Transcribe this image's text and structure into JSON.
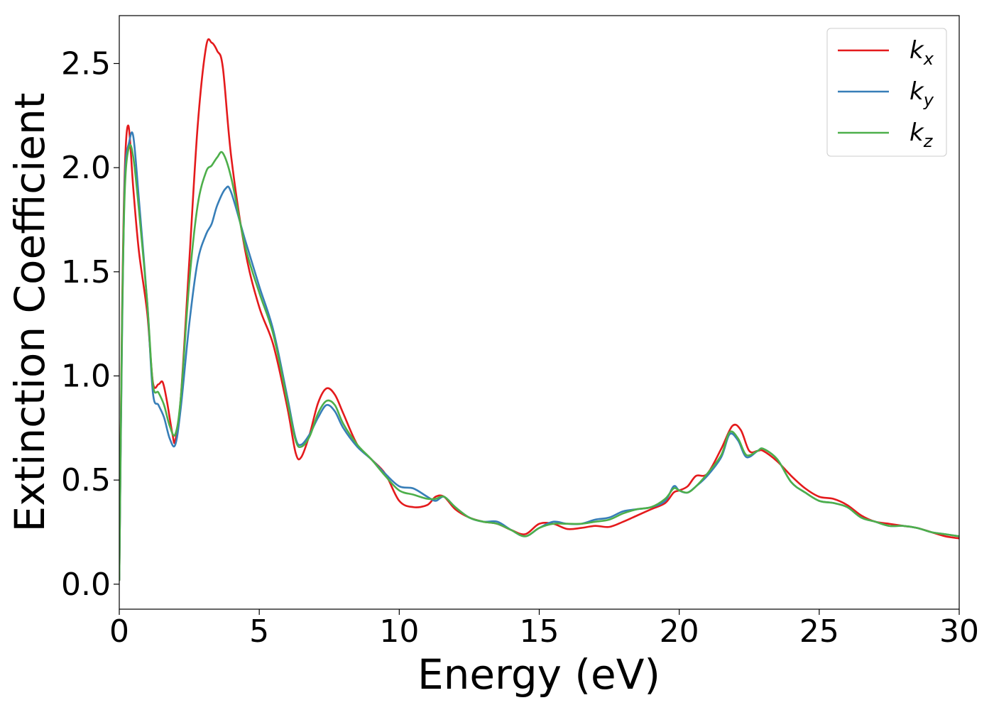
{
  "chart_data": {
    "type": "line",
    "title": "",
    "xlabel": "Energy (eV)",
    "ylabel": "Extinction Coefficient",
    "xlim": [
      0,
      30
    ],
    "ylim": [
      -0.12,
      2.73
    ],
    "xticks": [
      0,
      5,
      10,
      15,
      20,
      25,
      30
    ],
    "xtick_labels": [
      "0",
      "5",
      "10",
      "15",
      "20",
      "25",
      "30"
    ],
    "yticks": [
      0.0,
      0.5,
      1.0,
      1.5,
      2.0,
      2.5
    ],
    "ytick_labels": [
      "0.0",
      "0.5",
      "1.0",
      "1.5",
      "2.0",
      "2.5"
    ],
    "grid": false,
    "legend_position": "top-right",
    "series": [
      {
        "name": "k_x",
        "label_base": "k",
        "label_sub": "x",
        "color": "#e41a1c",
        "x": [
          0,
          0.1,
          0.2,
          0.33,
          0.5,
          0.7,
          1.0,
          1.2,
          1.4,
          1.55,
          1.7,
          1.9,
          2.0,
          2.2,
          2.5,
          2.8,
          3.1,
          3.3,
          3.5,
          3.7,
          4.0,
          4.5,
          5.0,
          5.5,
          6.0,
          6.3,
          6.5,
          6.8,
          7.1,
          7.4,
          7.7,
          8.0,
          8.5,
          9.0,
          9.5,
          10.0,
          10.5,
          11.0,
          11.3,
          11.6,
          12.0,
          12.5,
          13.0,
          13.5,
          14.0,
          14.5,
          15.0,
          15.5,
          16.0,
          16.5,
          17.0,
          17.5,
          18.0,
          18.5,
          19.0,
          19.5,
          19.8,
          20.0,
          20.3,
          20.6,
          21.0,
          21.5,
          21.9,
          22.2,
          22.5,
          22.8,
          23.0,
          23.5,
          24.0,
          24.5,
          25.0,
          25.5,
          26.0,
          26.5,
          27.0,
          27.5,
          28.0,
          28.5,
          29.0,
          29.5,
          30.0
        ],
        "y": [
          0.02,
          1.3,
          2.0,
          2.2,
          1.9,
          1.6,
          1.3,
          0.97,
          0.96,
          0.97,
          0.88,
          0.72,
          0.69,
          0.9,
          1.55,
          2.2,
          2.58,
          2.6,
          2.56,
          2.48,
          2.05,
          1.6,
          1.33,
          1.15,
          0.85,
          0.63,
          0.61,
          0.72,
          0.87,
          0.94,
          0.91,
          0.82,
          0.67,
          0.6,
          0.53,
          0.4,
          0.37,
          0.38,
          0.42,
          0.42,
          0.36,
          0.32,
          0.3,
          0.29,
          0.26,
          0.24,
          0.29,
          0.29,
          0.265,
          0.27,
          0.28,
          0.275,
          0.3,
          0.33,
          0.36,
          0.39,
          0.44,
          0.45,
          0.47,
          0.52,
          0.53,
          0.65,
          0.76,
          0.74,
          0.64,
          0.64,
          0.64,
          0.59,
          0.52,
          0.46,
          0.42,
          0.41,
          0.38,
          0.33,
          0.3,
          0.29,
          0.28,
          0.27,
          0.25,
          0.23,
          0.22
        ]
      },
      {
        "name": "k_y",
        "label_base": "k",
        "label_sub": "y",
        "color": "#377eb8",
        "x": [
          0,
          0.1,
          0.2,
          0.35,
          0.5,
          0.7,
          1.0,
          1.2,
          1.4,
          1.6,
          1.8,
          2.0,
          2.2,
          2.5,
          2.8,
          3.1,
          3.3,
          3.5,
          3.8,
          4.0,
          4.5,
          5.0,
          5.5,
          6.0,
          6.3,
          6.5,
          6.8,
          7.1,
          7.4,
          7.7,
          8.0,
          8.5,
          9.0,
          9.5,
          10.0,
          10.5,
          11.0,
          11.3,
          11.6,
          12.0,
          12.5,
          13.0,
          13.5,
          14.0,
          14.5,
          15.0,
          15.5,
          16.0,
          16.5,
          17.0,
          17.5,
          18.0,
          18.5,
          19.0,
          19.5,
          19.8,
          20.0,
          20.3,
          20.6,
          21.0,
          21.5,
          21.8,
          22.1,
          22.4,
          22.8,
          23.0,
          23.5,
          24.0,
          24.5,
          25.0,
          25.5,
          26.0,
          26.5,
          27.0,
          27.5,
          28.0,
          28.5,
          29.0,
          29.5,
          30.0
        ],
        "y": [
          0.02,
          1.2,
          1.95,
          2.12,
          2.15,
          1.85,
          1.35,
          0.92,
          0.86,
          0.8,
          0.7,
          0.67,
          0.85,
          1.25,
          1.55,
          1.68,
          1.73,
          1.82,
          1.9,
          1.88,
          1.65,
          1.43,
          1.22,
          0.9,
          0.7,
          0.67,
          0.72,
          0.8,
          0.86,
          0.83,
          0.75,
          0.66,
          0.6,
          0.53,
          0.47,
          0.46,
          0.42,
          0.4,
          0.42,
          0.37,
          0.32,
          0.3,
          0.3,
          0.26,
          0.23,
          0.27,
          0.3,
          0.29,
          0.29,
          0.31,
          0.32,
          0.35,
          0.36,
          0.37,
          0.4,
          0.47,
          0.45,
          0.44,
          0.47,
          0.52,
          0.61,
          0.72,
          0.69,
          0.61,
          0.64,
          0.65,
          0.6,
          0.49,
          0.44,
          0.4,
          0.39,
          0.37,
          0.32,
          0.3,
          0.28,
          0.28,
          0.27,
          0.25,
          0.24,
          0.23
        ]
      },
      {
        "name": "k_z",
        "label_base": "k",
        "label_sub": "z",
        "color": "#4daf4a",
        "x": [
          0,
          0.1,
          0.2,
          0.35,
          0.5,
          0.7,
          1.0,
          1.2,
          1.4,
          1.6,
          1.8,
          2.0,
          2.2,
          2.5,
          2.8,
          3.1,
          3.3,
          3.5,
          3.7,
          4.0,
          4.5,
          5.0,
          5.5,
          6.0,
          6.3,
          6.5,
          6.8,
          7.1,
          7.4,
          7.7,
          8.0,
          8.5,
          9.0,
          9.5,
          10.0,
          10.5,
          11.0,
          11.3,
          11.6,
          12.0,
          12.5,
          13.0,
          13.5,
          14.0,
          14.5,
          15.0,
          15.5,
          16.0,
          16.5,
          17.0,
          17.5,
          18.0,
          18.5,
          19.0,
          19.5,
          19.8,
          20.0,
          20.3,
          20.6,
          21.0,
          21.5,
          21.8,
          22.1,
          22.4,
          22.8,
          23.0,
          23.5,
          24.0,
          24.5,
          25.0,
          25.5,
          26.0,
          26.5,
          27.0,
          27.5,
          28.0,
          28.5,
          29.0,
          29.5,
          30.0
        ],
        "y": [
          0.02,
          1.25,
          1.9,
          2.1,
          2.05,
          1.8,
          1.35,
          0.96,
          0.92,
          0.86,
          0.76,
          0.72,
          0.9,
          1.45,
          1.82,
          1.98,
          2.01,
          2.05,
          2.07,
          1.95,
          1.62,
          1.4,
          1.2,
          0.88,
          0.69,
          0.66,
          0.71,
          0.82,
          0.88,
          0.86,
          0.77,
          0.67,
          0.6,
          0.52,
          0.45,
          0.43,
          0.41,
          0.41,
          0.42,
          0.37,
          0.32,
          0.3,
          0.29,
          0.26,
          0.23,
          0.27,
          0.29,
          0.29,
          0.29,
          0.3,
          0.31,
          0.34,
          0.36,
          0.37,
          0.41,
          0.46,
          0.45,
          0.44,
          0.47,
          0.53,
          0.62,
          0.73,
          0.7,
          0.62,
          0.64,
          0.65,
          0.6,
          0.49,
          0.44,
          0.4,
          0.39,
          0.37,
          0.32,
          0.3,
          0.28,
          0.28,
          0.27,
          0.25,
          0.24,
          0.23
        ]
      }
    ]
  }
}
